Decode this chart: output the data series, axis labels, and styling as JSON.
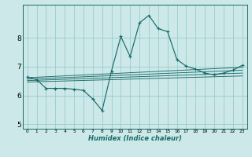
{
  "xlabel": "Humidex (Indice chaleur)",
  "bg_color": "#cce8e8",
  "grid_color": "#99cccc",
  "line_color": "#1a6b6b",
  "xlim": [
    -0.5,
    23.5
  ],
  "ylim": [
    4.85,
    9.15
  ],
  "yticks": [
    5,
    6,
    7,
    8
  ],
  "xticks": [
    0,
    1,
    2,
    3,
    4,
    5,
    6,
    7,
    8,
    9,
    10,
    11,
    12,
    13,
    14,
    15,
    16,
    17,
    18,
    19,
    20,
    21,
    22,
    23
  ],
  "main_line_x": [
    0,
    1,
    2,
    3,
    4,
    5,
    6,
    7,
    8,
    9,
    10,
    11,
    12,
    13,
    14,
    15,
    16,
    17,
    18,
    19,
    20,
    21,
    22,
    23
  ],
  "main_line_y": [
    6.65,
    6.55,
    6.25,
    6.25,
    6.25,
    6.22,
    6.18,
    5.88,
    5.48,
    6.85,
    8.05,
    7.35,
    8.52,
    8.78,
    8.32,
    8.22,
    7.25,
    7.02,
    6.92,
    6.78,
    6.72,
    6.78,
    6.88,
    7.05
  ],
  "linear_lines": [
    {
      "x": [
        0,
        23
      ],
      "y": [
        6.62,
        6.98
      ]
    },
    {
      "x": [
        0,
        23
      ],
      "y": [
        6.57,
        6.88
      ]
    },
    {
      "x": [
        0,
        23
      ],
      "y": [
        6.52,
        6.78
      ]
    },
    {
      "x": [
        0,
        23
      ],
      "y": [
        6.47,
        6.68
      ]
    }
  ]
}
